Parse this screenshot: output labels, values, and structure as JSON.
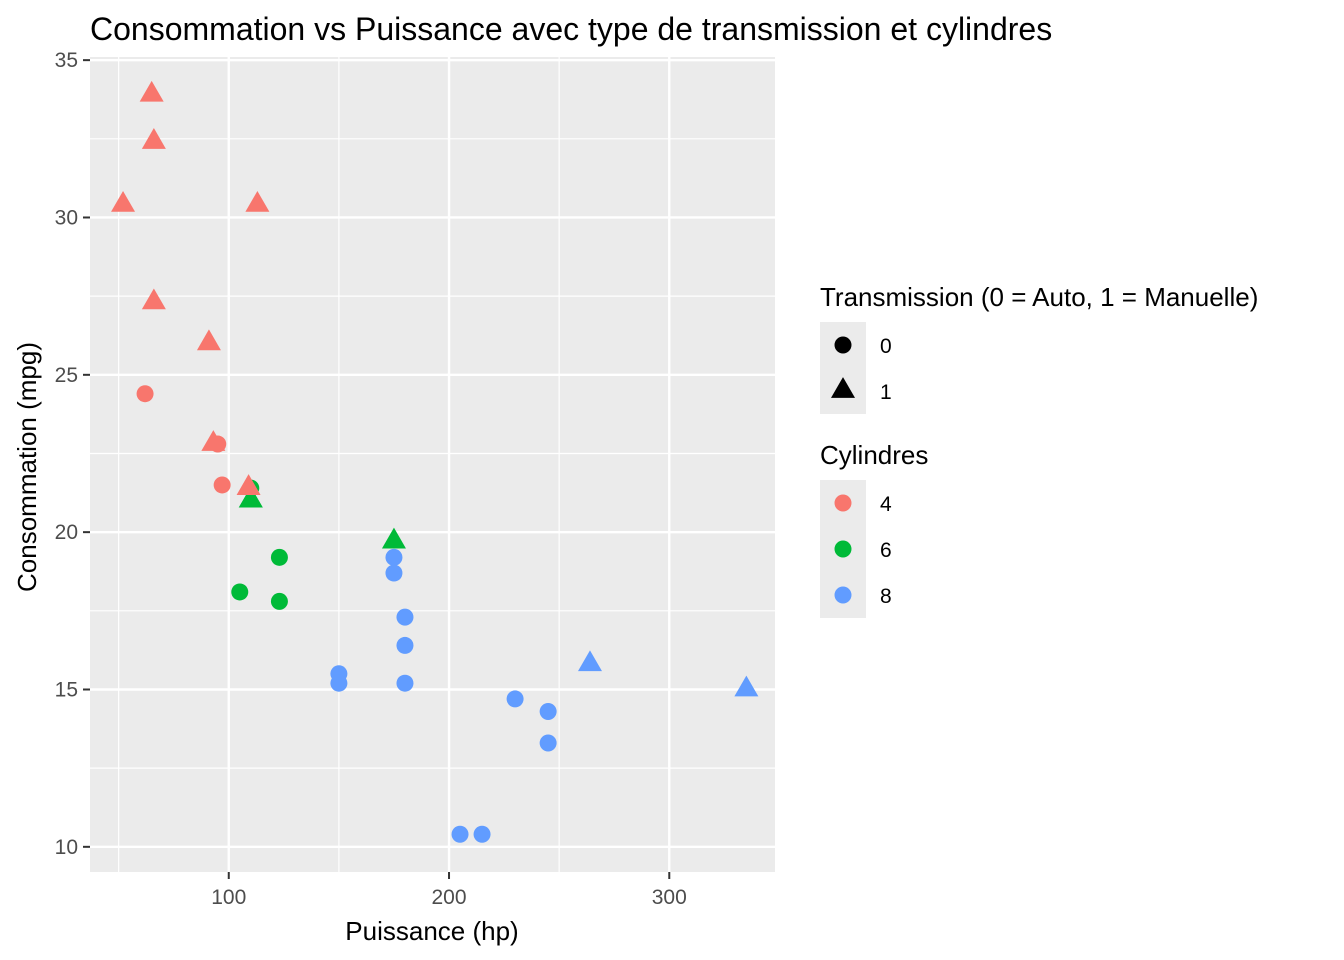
{
  "chart_data": {
    "type": "scatter",
    "title": "Consommation vs Puissance avec type de transmission et cylindres",
    "xlabel": "Puissance (hp)",
    "ylabel": "Consommation (mpg)",
    "xlim": [
      37,
      348
    ],
    "ylim": [
      9.2,
      35.1
    ],
    "x_ticks": [
      100,
      200,
      300
    ],
    "y_ticks": [
      10,
      15,
      20,
      25,
      30,
      35
    ],
    "grid": true,
    "colors": {
      "panel": "#ebebeb",
      "grid": "#ffffff",
      "legend_key_bg": "#ebebeb",
      "legend_shape": "#000000"
    },
    "legends": [
      {
        "title": "Transmission (0 = Auto, 1 = Manuelle)",
        "kind": "shape",
        "entries": [
          {
            "label": "0",
            "shape": "circle"
          },
          {
            "label": "1",
            "shape": "triangle"
          }
        ]
      },
      {
        "title": "Cylindres",
        "kind": "color",
        "entries": [
          {
            "label": "4",
            "color": "#f8766d"
          },
          {
            "label": "6",
            "color": "#00ba38"
          },
          {
            "label": "8",
            "color": "#619cff"
          }
        ]
      }
    ],
    "legend_position": "right",
    "points": [
      {
        "x": 110,
        "y": 21.0,
        "cyl": "6",
        "am": "1"
      },
      {
        "x": 110,
        "y": 21.0,
        "cyl": "6",
        "am": "1"
      },
      {
        "x": 93,
        "y": 22.8,
        "cyl": "4",
        "am": "1"
      },
      {
        "x": 110,
        "y": 21.4,
        "cyl": "6",
        "am": "0"
      },
      {
        "x": 175,
        "y": 18.7,
        "cyl": "8",
        "am": "0"
      },
      {
        "x": 105,
        "y": 18.1,
        "cyl": "6",
        "am": "0"
      },
      {
        "x": 245,
        "y": 14.3,
        "cyl": "8",
        "am": "0"
      },
      {
        "x": 62,
        "y": 24.4,
        "cyl": "4",
        "am": "0"
      },
      {
        "x": 95,
        "y": 22.8,
        "cyl": "4",
        "am": "0"
      },
      {
        "x": 123,
        "y": 19.2,
        "cyl": "6",
        "am": "0"
      },
      {
        "x": 123,
        "y": 17.8,
        "cyl": "6",
        "am": "0"
      },
      {
        "x": 180,
        "y": 16.4,
        "cyl": "8",
        "am": "0"
      },
      {
        "x": 180,
        "y": 17.3,
        "cyl": "8",
        "am": "0"
      },
      {
        "x": 180,
        "y": 15.2,
        "cyl": "8",
        "am": "0"
      },
      {
        "x": 205,
        "y": 10.4,
        "cyl": "8",
        "am": "0"
      },
      {
        "x": 215,
        "y": 10.4,
        "cyl": "8",
        "am": "0"
      },
      {
        "x": 66,
        "y": 32.4,
        "cyl": "4",
        "am": "1"
      },
      {
        "x": 52,
        "y": 30.4,
        "cyl": "4",
        "am": "1"
      },
      {
        "x": 65,
        "y": 33.9,
        "cyl": "4",
        "am": "1"
      },
      {
        "x": 97,
        "y": 21.5,
        "cyl": "4",
        "am": "0"
      },
      {
        "x": 150,
        "y": 15.5,
        "cyl": "8",
        "am": "0"
      },
      {
        "x": 150,
        "y": 15.2,
        "cyl": "8",
        "am": "0"
      },
      {
        "x": 245,
        "y": 13.3,
        "cyl": "8",
        "am": "0"
      },
      {
        "x": 175,
        "y": 19.2,
        "cyl": "8",
        "am": "0"
      },
      {
        "x": 66,
        "y": 27.3,
        "cyl": "4",
        "am": "1"
      },
      {
        "x": 91,
        "y": 26.0,
        "cyl": "4",
        "am": "1"
      },
      {
        "x": 113,
        "y": 30.4,
        "cyl": "4",
        "am": "1"
      },
      {
        "x": 264,
        "y": 15.8,
        "cyl": "8",
        "am": "1"
      },
      {
        "x": 175,
        "y": 19.7,
        "cyl": "6",
        "am": "1"
      },
      {
        "x": 335,
        "y": 15.0,
        "cyl": "8",
        "am": "1"
      },
      {
        "x": 109,
        "y": 21.4,
        "cyl": "4",
        "am": "1"
      },
      {
        "x": 230,
        "y": 14.7,
        "cyl": "8",
        "am": "0"
      }
    ]
  }
}
